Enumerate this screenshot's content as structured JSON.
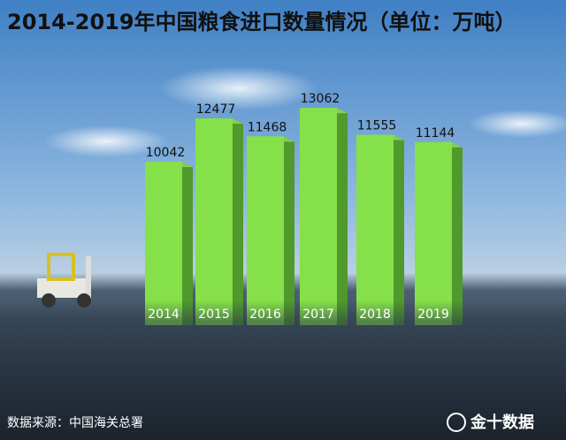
{
  "chart_data": {
    "type": "bar",
    "title": "2014-2019年中国粮食进口数量情况（单位：万吨）",
    "categories": [
      "2014",
      "2015",
      "2016",
      "2017",
      "2018",
      "2019"
    ],
    "values": [
      10042,
      12477,
      11468,
      13062,
      11555,
      11144
    ],
    "color": "#86e04a",
    "source": "数据来源：中国海关总署",
    "logo": "金十数据"
  }
}
